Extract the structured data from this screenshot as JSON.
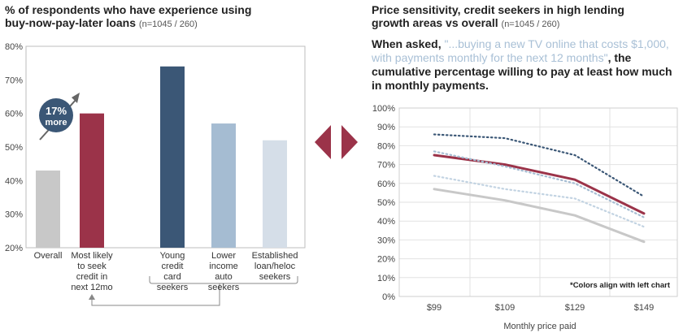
{
  "left": {
    "title": "% of respondents who have experience using buy-now-pay-later loans",
    "title_line1": "% of respondents who have experience using",
    "title_line2": "buy-now-pay-later loans",
    "sample": "(n=1045 / 260)",
    "callout_value": "17%",
    "callout_label": "more",
    "colors": {
      "overall": "#c8c8c8",
      "likely": "#9b3349",
      "young": "#3b5776",
      "lower": "#a5bcd2",
      "established": "#d5dee8"
    }
  },
  "right": {
    "title_line1": "Price sensitivity, credit seekers in high lending",
    "title_line2": "growth areas vs overall",
    "sample": "(n=1045 / 260)",
    "question_lead": "When asked, ",
    "question_quote": "\"...buying a new TV online that costs $1,000, with payments monthly for the next 12 months\"",
    "question_tail": ", the cumulative percentage  willing to pay at least how much in monthly payments.",
    "note": "*Colors align with left chart"
  },
  "chart_data": [
    {
      "type": "bar",
      "title": "% of respondents who have experience using buy-now-pay-later loans",
      "categories": [
        "Overall",
        "Most likely to seek credit in next 12mo",
        "Young credit card seekers",
        "Lower income auto seekers",
        "Established loan/heloc seekers"
      ],
      "category_lines": [
        [
          "Overall"
        ],
        [
          "Most likely",
          "to seek",
          "credit in",
          "next 12mo"
        ],
        [
          "Young",
          "credit",
          "card",
          "seekers"
        ],
        [
          "Lower",
          "income",
          "auto",
          "seekers"
        ],
        [
          "Established",
          "loan/heloc",
          "seekers"
        ]
      ],
      "values": [
        43,
        60,
        74,
        57,
        52
      ],
      "ylim": [
        20,
        80
      ],
      "yticks": [
        "20%",
        "30%",
        "40%",
        "50%",
        "60%",
        "70%",
        "80%"
      ],
      "annotation": "17% more"
    },
    {
      "type": "line",
      "x": [
        "$99",
        "$109",
        "$129",
        "$149"
      ],
      "xlabel": "Monthly price paid",
      "ylim": [
        0,
        100
      ],
      "yticks": [
        "0%",
        "10%",
        "20%",
        "30%",
        "40%",
        "50%",
        "60%",
        "70%",
        "80%",
        "90%",
        "100%"
      ],
      "series": [
        {
          "values": [
            86,
            84,
            75,
            53
          ],
          "color": "#3b5776",
          "style": "dotted"
        },
        {
          "values": [
            75,
            70,
            62,
            44
          ],
          "color": "#9b3349",
          "style": "solid"
        },
        {
          "values": [
            77,
            69,
            60,
            42
          ],
          "color": "#a5bcd2",
          "style": "dotted"
        },
        {
          "values": [
            64,
            57,
            52,
            37
          ],
          "color": "#c2d3e2",
          "style": "dotted"
        },
        {
          "values": [
            57,
            51,
            43,
            29
          ],
          "color": "#c8c8c8",
          "style": "solid"
        }
      ]
    }
  ]
}
